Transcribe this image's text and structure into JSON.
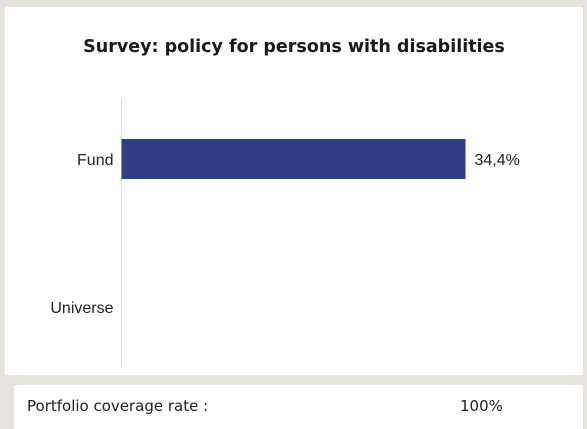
{
  "chart_data": {
    "type": "bar",
    "orientation": "horizontal",
    "title": "Survey: policy for persons with disabilities",
    "categories": [
      "Fund",
      "Universe"
    ],
    "values": [
      34.4,
      null
    ],
    "value_labels": [
      "34,4%",
      ""
    ],
    "unit": "%",
    "xlim": [
      0,
      100
    ],
    "grid": false,
    "bar_color": "#2f3f86"
  },
  "footer": {
    "coverage_label": "Portfolio coverage rate :",
    "coverage_value": "100%"
  }
}
